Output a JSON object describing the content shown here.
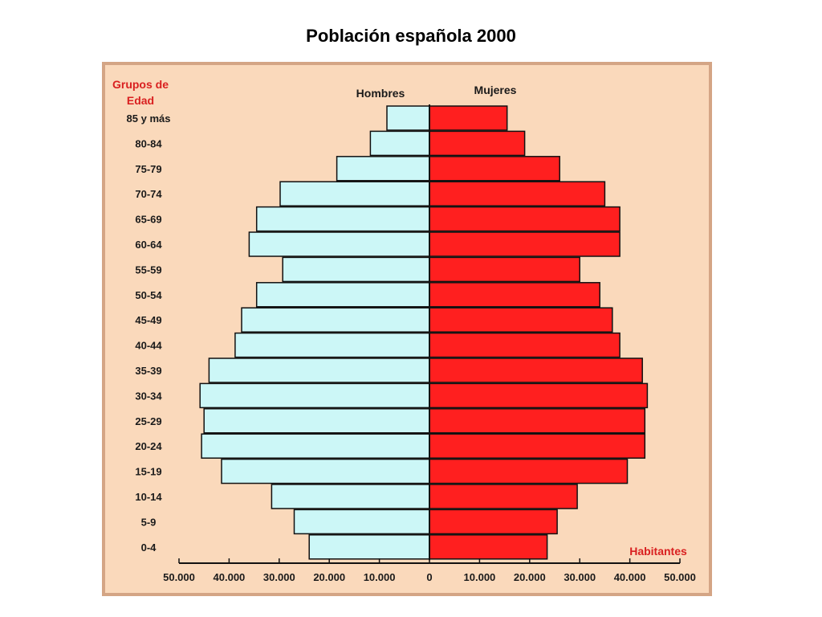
{
  "title": "Población española 2000",
  "chart_data": {
    "type": "bar",
    "orientation": "horizontal",
    "subtype": "population-pyramid",
    "y_axis_title_lines": [
      "Grupos de",
      "Edad"
    ],
    "x_axis_label": "Habitantes",
    "categories": [
      "85 y más",
      "80-84",
      "75-79",
      "70-74",
      "65-69",
      "60-64",
      "55-59",
      "50-54",
      "45-49",
      "40-44",
      "35-39",
      "30-34",
      "25-29",
      "20-24",
      "15-19",
      "10-14",
      "5-9",
      "0-4"
    ],
    "series": [
      {
        "name": "Hombres",
        "side": "left",
        "color": "#ccf7f7",
        "values": [
          8500,
          11800,
          18500,
          29800,
          34500,
          36000,
          29300,
          34500,
          37500,
          38800,
          44000,
          45800,
          45000,
          45500,
          41500,
          31500,
          27000,
          24000
        ]
      },
      {
        "name": "Mujeres",
        "side": "right",
        "color": "#ff1f1f",
        "values": [
          15500,
          19000,
          26000,
          35000,
          38000,
          38000,
          30000,
          34000,
          36500,
          38000,
          42500,
          43500,
          43000,
          43000,
          39500,
          29500,
          25500,
          23500
        ]
      }
    ],
    "x_ticks": [
      "50.000",
      "40.000",
      "30.000",
      "20.000",
      "10.000",
      "0",
      "10.000",
      "20.000",
      "30.000",
      "40.000",
      "50.000"
    ],
    "xlim": [
      -50000,
      50000
    ],
    "grid": false
  },
  "colors": {
    "frame": "#d4a585",
    "background": "#fad9bb",
    "axis_title": "#d92020",
    "text": "#1a1a1a"
  }
}
